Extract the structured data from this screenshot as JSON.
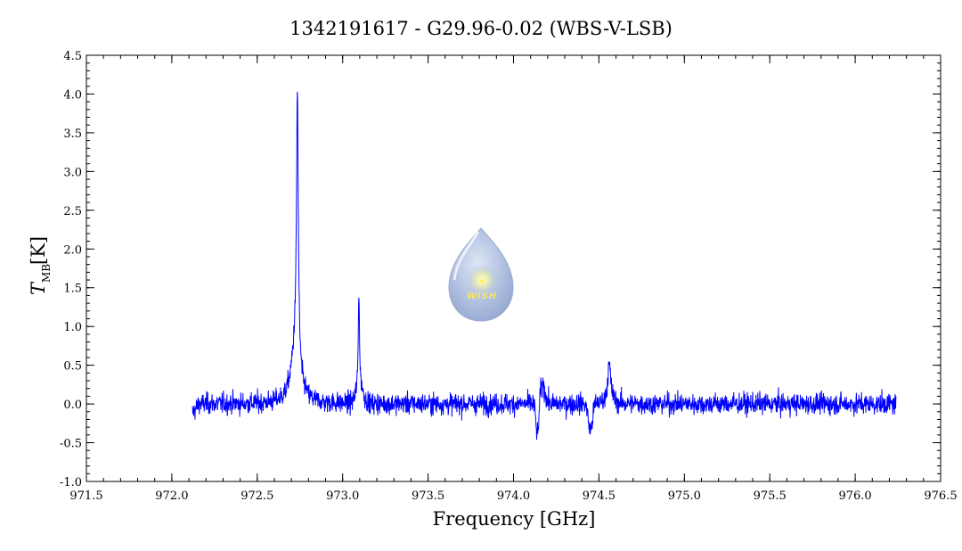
{
  "chart_data": {
    "type": "line",
    "title": "1342191617 - G29.96-0.02 (WBS-V-LSB)",
    "xlabel": "Frequency [GHz]",
    "ylabel_main": "T",
    "ylabel_sub": "MB",
    "ylabel_unit": "[K]",
    "xlim": [
      971.5,
      976.5
    ],
    "ylim": [
      -1.0,
      4.5
    ],
    "x_ticks": [
      "971.5",
      "972.0",
      "972.5",
      "973.0",
      "973.5",
      "974.0",
      "974.5",
      "975.0",
      "975.5",
      "976.0",
      "976.5"
    ],
    "y_ticks": [
      "-1.0",
      "-0.5",
      "0.0",
      "0.5",
      "1.0",
      "1.5",
      "2.0",
      "2.5",
      "3.0",
      "3.5",
      "4.0",
      "4.5"
    ],
    "x_tick_values": [
      971.5,
      972.0,
      972.5,
      973.0,
      973.5,
      974.0,
      974.5,
      975.0,
      975.5,
      976.0,
      976.5
    ],
    "y_tick_values": [
      -1.0,
      -0.5,
      0.0,
      0.5,
      1.0,
      1.5,
      2.0,
      2.5,
      3.0,
      3.5,
      4.0,
      4.5
    ],
    "x_range_data": [
      972.12,
      976.24
    ],
    "noise_rms": 0.09,
    "series": [
      {
        "color": "#0000ff",
        "features": [
          {
            "x": 972.735,
            "peak": 4.1,
            "type": "emission"
          },
          {
            "x": 972.7,
            "peak": 0.7,
            "type": "emission-wing"
          },
          {
            "x": 973.095,
            "peak": 1.5,
            "type": "emission"
          },
          {
            "x": 974.14,
            "peak": -0.55,
            "type": "absorption"
          },
          {
            "x": 974.17,
            "peak": 0.35,
            "type": "emission"
          },
          {
            "x": 974.45,
            "peak": -0.4,
            "type": "absorption"
          },
          {
            "x": 974.56,
            "peak": 0.6,
            "type": "emission"
          }
        ]
      }
    ],
    "grid": false,
    "logo_text": "WISH",
    "colors": {
      "line": "#0000ff",
      "axes": "#000000",
      "logo": "#a9bce0"
    }
  }
}
